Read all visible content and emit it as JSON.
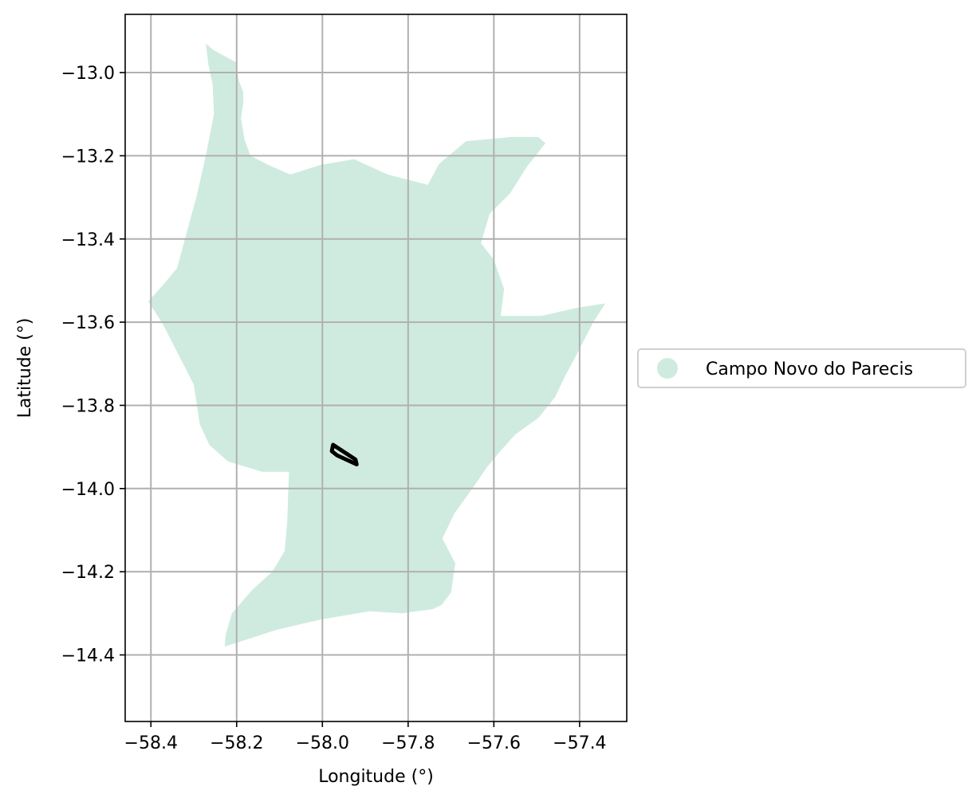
{
  "chart_data": {
    "type": "map",
    "xlabel": "Longitude (°)",
    "ylabel": "Latitude (°)",
    "xlim": [
      -58.46,
      -57.29
    ],
    "ylim": [
      -14.56,
      -12.86
    ],
    "xticks": [
      -58.4,
      -58.2,
      -58.0,
      -57.8,
      -57.6,
      -57.4
    ],
    "xtick_labels": [
      "−58.4",
      "−58.2",
      "−58.0",
      "−57.8",
      "−57.6",
      "−57.4"
    ],
    "yticks": [
      -13.0,
      -13.2,
      -13.4,
      -13.6,
      -13.8,
      -14.0,
      -14.2,
      -14.4
    ],
    "ytick_labels": [
      "−13.0",
      "−13.2",
      "−13.4",
      "−13.6",
      "−13.8",
      "−14.0",
      "−14.2",
      "−14.4"
    ],
    "grid": true,
    "legend_position": "right",
    "legend": [
      {
        "label": "Campo Novo do Parecis",
        "color": "#cfebdf"
      }
    ],
    "region": {
      "name": "Campo Novo do Parecis",
      "fill": "#cfebdf",
      "boundary": [
        [
          -58.272,
          -12.93
        ],
        [
          -58.255,
          -12.945
        ],
        [
          -58.22,
          -12.965
        ],
        [
          -58.202,
          -12.975
        ],
        [
          -58.195,
          -13.02
        ],
        [
          -58.185,
          -13.045
        ],
        [
          -58.184,
          -13.07
        ],
        [
          -58.19,
          -13.11
        ],
        [
          -58.182,
          -13.16
        ],
        [
          -58.168,
          -13.2
        ],
        [
          -58.12,
          -13.225
        ],
        [
          -58.075,
          -13.245
        ],
        [
          -58.004,
          -13.222
        ],
        [
          -57.926,
          -13.208
        ],
        [
          -57.848,
          -13.245
        ],
        [
          -57.754,
          -13.27
        ],
        [
          -57.728,
          -13.22
        ],
        [
          -57.665,
          -13.165
        ],
        [
          -57.56,
          -13.155
        ],
        [
          -57.496,
          -13.155
        ],
        [
          -57.48,
          -13.17
        ],
        [
          -57.522,
          -13.225
        ],
        [
          -57.562,
          -13.29
        ],
        [
          -57.61,
          -13.34
        ],
        [
          -57.63,
          -13.41
        ],
        [
          -57.6,
          -13.45
        ],
        [
          -57.576,
          -13.52
        ],
        [
          -57.584,
          -13.585
        ],
        [
          -57.489,
          -13.585
        ],
        [
          -57.403,
          -13.565
        ],
        [
          -57.34,
          -13.555
        ],
        [
          -57.368,
          -13.6
        ],
        [
          -57.408,
          -13.68
        ],
        [
          -57.434,
          -13.73
        ],
        [
          -57.457,
          -13.78
        ],
        [
          -57.496,
          -13.83
        ],
        [
          -57.55,
          -13.87
        ],
        [
          -57.585,
          -13.91
        ],
        [
          -57.617,
          -13.95
        ],
        [
          -57.65,
          -14.0
        ],
        [
          -57.692,
          -14.06
        ],
        [
          -57.72,
          -14.12
        ],
        [
          -57.69,
          -14.18
        ],
        [
          -57.7,
          -14.25
        ],
        [
          -57.722,
          -14.28
        ],
        [
          -57.743,
          -14.29
        ],
        [
          -57.814,
          -14.3
        ],
        [
          -57.89,
          -14.295
        ],
        [
          -58.005,
          -14.315
        ],
        [
          -58.108,
          -14.34
        ],
        [
          -58.228,
          -14.38
        ],
        [
          -58.225,
          -14.35
        ],
        [
          -58.211,
          -14.3
        ],
        [
          -58.165,
          -14.245
        ],
        [
          -58.117,
          -14.2
        ],
        [
          -58.088,
          -14.15
        ],
        [
          -58.082,
          -14.08
        ],
        [
          -58.078,
          -13.96
        ],
        [
          -58.14,
          -13.96
        ],
        [
          -58.22,
          -13.935
        ],
        [
          -58.264,
          -13.895
        ],
        [
          -58.286,
          -13.845
        ],
        [
          -58.3,
          -13.75
        ],
        [
          -58.372,
          -13.605
        ],
        [
          -58.406,
          -13.55
        ],
        [
          -58.367,
          -13.505
        ],
        [
          -58.339,
          -13.47
        ],
        [
          -58.31,
          -13.36
        ],
        [
          -58.294,
          -13.3
        ],
        [
          -58.272,
          -13.2
        ],
        [
          -58.253,
          -13.1
        ],
        [
          -58.256,
          -13.03
        ],
        [
          -58.266,
          -12.98
        ]
      ]
    },
    "feature": {
      "stroke": "#000000",
      "outline": [
        [
          -57.975,
          -13.895
        ],
        [
          -57.923,
          -13.93
        ],
        [
          -57.92,
          -13.942
        ],
        [
          -57.966,
          -13.92
        ],
        [
          -57.978,
          -13.91
        ]
      ]
    }
  }
}
